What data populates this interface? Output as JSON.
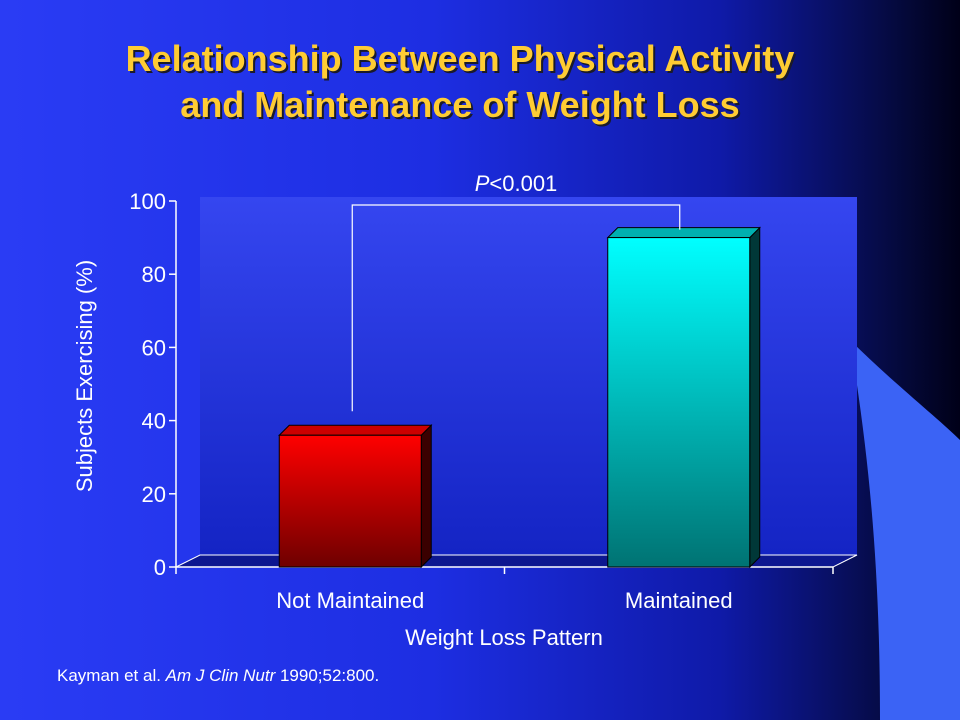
{
  "slide": {
    "title_line1": "Relationship Between Physical Activity",
    "title_line2": "and Maintenance of Weight Loss",
    "citation_authors": "Kayman et al. ",
    "citation_journal": "Am J Clin Nutr",
    "citation_rest": " 1990;52:800."
  },
  "colors": {
    "title": "#ffcc33",
    "text": "#ffffff",
    "plot_back": "#1a2ad6",
    "bar_not_maintained": "#ff0000",
    "bar_maintained": "#00ffff"
  },
  "chart_data": {
    "type": "bar",
    "categories": [
      "Not Maintained",
      "Maintained"
    ],
    "values": [
      36,
      90
    ],
    "xlabel": "Weight Loss Pattern",
    "ylabel": "Subjects Exercising (%)",
    "ylim": [
      0,
      100
    ],
    "yticks": [
      0,
      20,
      40,
      60,
      80,
      100
    ],
    "legend": "none",
    "grid": false,
    "annotation": {
      "p_italic": "P",
      "p_rest": "<0.001"
    }
  }
}
